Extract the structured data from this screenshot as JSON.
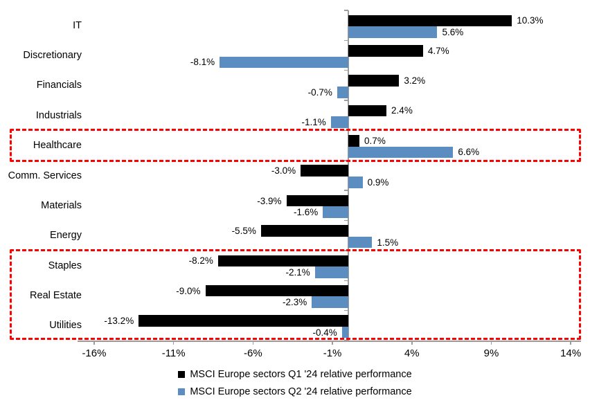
{
  "chart_data": {
    "type": "bar",
    "orientation": "horizontal",
    "title": "",
    "categories": [
      "IT",
      "Discretionary",
      "Financials",
      "Industrials",
      "Healthcare",
      "Comm. Services",
      "Materials",
      "Energy",
      "Staples",
      "Real Estate",
      "Utilities"
    ],
    "series": [
      {
        "name": "MSCI Europe sectors Q1 '24 relative performance",
        "color": "#000000",
        "values": [
          10.3,
          4.7,
          3.2,
          2.4,
          0.7,
          -3.0,
          -3.9,
          -5.5,
          -8.2,
          -9.0,
          -13.2
        ],
        "labels": [
          "10.3%",
          "4.7%",
          "3.2%",
          "2.4%",
          "0.7%",
          "-3.0%",
          "-3.9%",
          "-5.5%",
          "-8.2%",
          "-9.0%",
          "-13.2%"
        ]
      },
      {
        "name": "MSCI Europe sectors Q2 '24 relative performance",
        "color": "#5b8dc1",
        "values": [
          5.6,
          -8.1,
          -0.7,
          -1.1,
          6.6,
          0.9,
          -1.6,
          1.5,
          -2.1,
          -2.3,
          -0.4
        ],
        "labels": [
          "5.6%",
          "-8.1%",
          "-0.7%",
          "-1.1%",
          "6.6%",
          "0.9%",
          "-1.6%",
          "1.5%",
          "-2.1%",
          "-2.3%",
          "-0.4%"
        ]
      }
    ],
    "x_axis": {
      "tick_labels": [
        "-16%",
        "-11%",
        "-6%",
        "-1%",
        "4%",
        "9%",
        "14%"
      ],
      "tick_values": [
        -16,
        -11,
        -6,
        -1,
        4,
        9,
        14
      ],
      "min": -17.1,
      "max": 14.6
    },
    "grid": false,
    "legend_position": "bottom",
    "axis_color": "#9c9c9c",
    "annotations": {
      "highlight_boxes": [
        {
          "categories": [
            "Healthcare"
          ],
          "color": "#ff0000",
          "style": "dashed"
        },
        {
          "categories": [
            "Staples",
            "Real Estate",
            "Utilities"
          ],
          "color": "#ff0000",
          "style": "dashed"
        }
      ]
    }
  }
}
